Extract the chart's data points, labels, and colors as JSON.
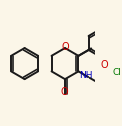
{
  "bg_color": "#fbf6e8",
  "bond_color": "#1a1a1a",
  "atom_colors": {
    "O": "#cc0000",
    "N": "#0000bb",
    "Cl": "#007700",
    "C": "#1a1a1a"
  },
  "linewidth": 1.4,
  "figsize": [
    1.22,
    1.26
  ],
  "dpi": 100
}
